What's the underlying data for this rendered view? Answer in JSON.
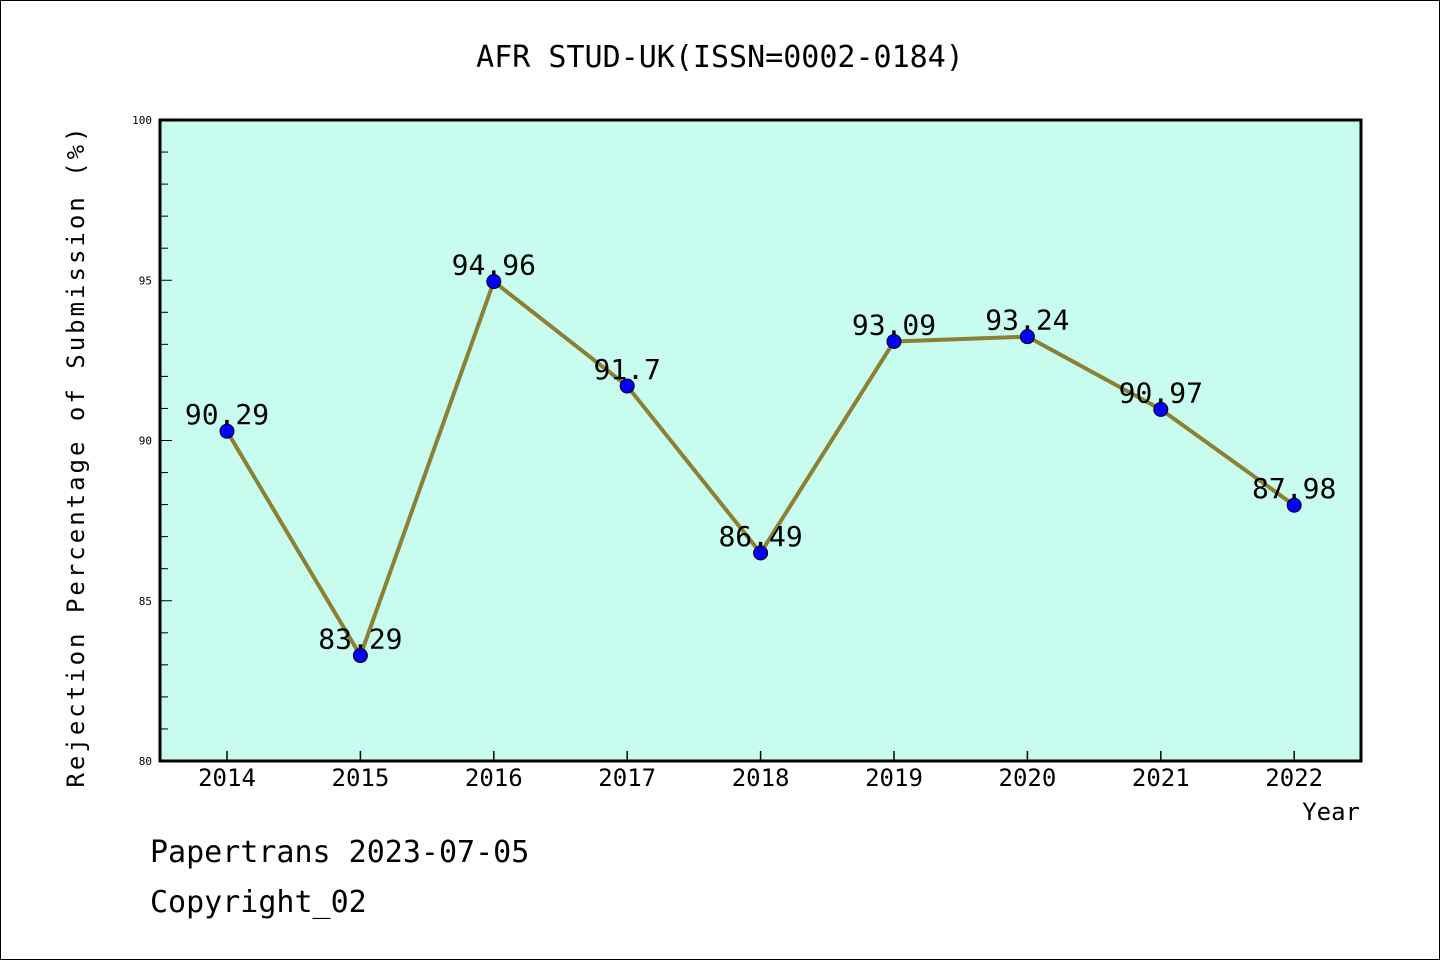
{
  "chart_data": {
    "type": "line",
    "title": "AFR STUD-UK(ISSN=0002-0184)",
    "xlabel": "Year",
    "ylabel": "Rejection Percentage of Submission (%)",
    "categories": [
      "2014",
      "2015",
      "2016",
      "2017",
      "2018",
      "2019",
      "2020",
      "2021",
      "2022"
    ],
    "series": [
      {
        "values": [
          90.29,
          83.29,
          94.96,
          91.7,
          86.49,
          93.09,
          93.24,
          90.97,
          87.98
        ],
        "labels": [
          "90.29",
          "83.29",
          "94.96",
          "91.7",
          "86.49",
          "93.09",
          "93.24",
          "90.97",
          "87.98"
        ],
        "line_color": "#8b8034",
        "marker_color": "#0000ff"
      }
    ],
    "ylim": [
      80,
      100
    ],
    "yticks": [
      "80",
      "85",
      "90",
      "95",
      "100"
    ],
    "plot_background": "#c8fcee",
    "grid": false
  },
  "footer": {
    "line1": "Papertrans 2023-07-05",
    "line2": "Copyright_02"
  }
}
